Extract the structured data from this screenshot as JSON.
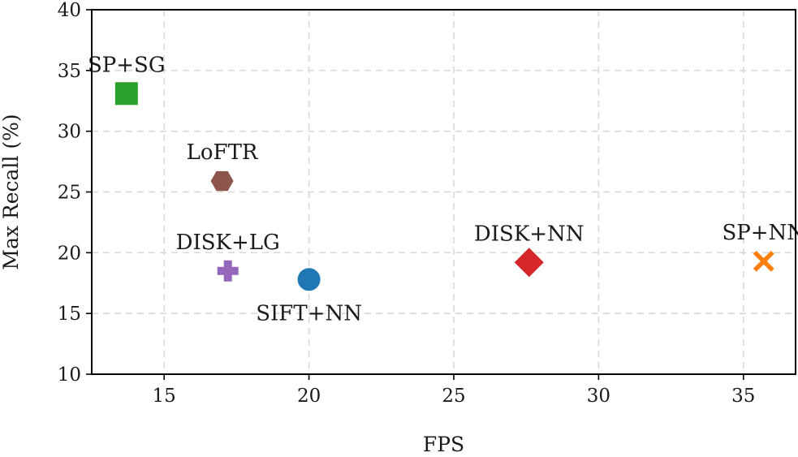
{
  "chart_data": {
    "type": "scatter",
    "title": "",
    "xlabel": "FPS",
    "ylabel": "Max Recall (%)",
    "xlim": [
      12.5,
      36.8
    ],
    "ylim": [
      10,
      40
    ],
    "xticks": [
      15,
      20,
      25,
      30,
      35
    ],
    "yticks": [
      10,
      15,
      20,
      25,
      30,
      35,
      40
    ],
    "grid": true,
    "points": [
      {
        "label": "SP+SG",
        "x": 13.7,
        "y": 33.1,
        "marker": "square",
        "color": "#2ca02c",
        "label_pos": "above"
      },
      {
        "label": "LoFTR",
        "x": 17.0,
        "y": 25.9,
        "marker": "hexagon",
        "color": "#8c564b",
        "label_pos": "above"
      },
      {
        "label": "DISK+LG",
        "x": 17.2,
        "y": 18.5,
        "marker": "plus",
        "color": "#9467bd",
        "label_pos": "above"
      },
      {
        "label": "SIFT+NN",
        "x": 20.0,
        "y": 17.8,
        "marker": "circle",
        "color": "#1f77b4",
        "label_pos": "below"
      },
      {
        "label": "DISK+NN",
        "x": 27.6,
        "y": 19.2,
        "marker": "diamond",
        "color": "#d62728",
        "label_pos": "above"
      },
      {
        "label": "SP+NN",
        "x": 35.7,
        "y": 19.3,
        "marker": "x",
        "color": "#ff7f0e",
        "label_pos": "above"
      }
    ]
  }
}
